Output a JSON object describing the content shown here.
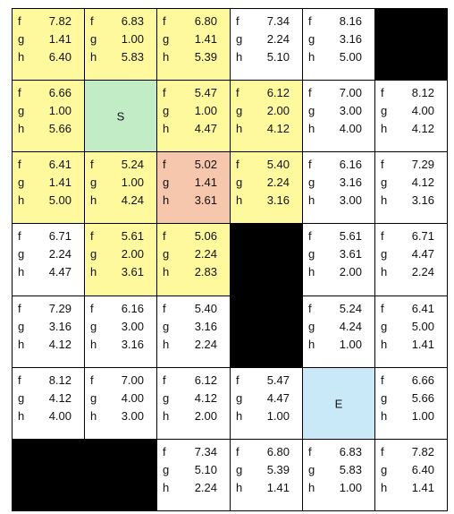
{
  "grid": {
    "rows": 7,
    "cols": 6,
    "colors": {
      "white": "#ffffff",
      "yellow": "#fff99e",
      "salmon": "#f6c6ad",
      "green": "#c2ecc6",
      "blue": "#c9e8f8",
      "wall": "#000000"
    },
    "cells": [
      [
        {
          "type": "value",
          "color": "yellow",
          "f": "7.82",
          "g": "1.41",
          "h": "6.40"
        },
        {
          "type": "value",
          "color": "yellow",
          "f": "6.83",
          "g": "1.00",
          "h": "5.83"
        },
        {
          "type": "value",
          "color": "yellow",
          "f": "6.80",
          "g": "1.41",
          "h": "5.39"
        },
        {
          "type": "value",
          "color": "white",
          "f": "7.34",
          "g": "2.24",
          "h": "5.10"
        },
        {
          "type": "value",
          "color": "white",
          "f": "8.16",
          "g": "3.16",
          "h": "5.00"
        },
        {
          "type": "wall"
        }
      ],
      [
        {
          "type": "value",
          "color": "yellow",
          "f": "6.66",
          "g": "1.00",
          "h": "5.66"
        },
        {
          "type": "start",
          "color": "green",
          "label": "S"
        },
        {
          "type": "value",
          "color": "yellow",
          "f": "5.47",
          "g": "1.00",
          "h": "4.47"
        },
        {
          "type": "value",
          "color": "yellow",
          "f": "6.12",
          "g": "2.00",
          "h": "4.12"
        },
        {
          "type": "value",
          "color": "white",
          "f": "7.00",
          "g": "3.00",
          "h": "4.00"
        },
        {
          "type": "value",
          "color": "white",
          "f": "8.12",
          "g": "4.00",
          "h": "4.12"
        }
      ],
      [
        {
          "type": "value",
          "color": "yellow",
          "f": "6.41",
          "g": "1.41",
          "h": "5.00"
        },
        {
          "type": "value",
          "color": "yellow",
          "f": "5.24",
          "g": "1.00",
          "h": "4.24"
        },
        {
          "type": "value",
          "color": "salmon",
          "f": "5.02",
          "g": "1.41",
          "h": "3.61"
        },
        {
          "type": "value",
          "color": "yellow",
          "f": "5.40",
          "g": "2.24",
          "h": "3.16"
        },
        {
          "type": "value",
          "color": "white",
          "f": "6.16",
          "g": "3.16",
          "h": "3.00"
        },
        {
          "type": "value",
          "color": "white",
          "f": "7.29",
          "g": "4.12",
          "h": "3.16"
        }
      ],
      [
        {
          "type": "value",
          "color": "white",
          "f": "6.71",
          "g": "2.24",
          "h": "4.47"
        },
        {
          "type": "value",
          "color": "yellow",
          "f": "5.61",
          "g": "2.00",
          "h": "3.61"
        },
        {
          "type": "value",
          "color": "yellow",
          "f": "5.06",
          "g": "2.24",
          "h": "2.83"
        },
        {
          "type": "wall"
        },
        {
          "type": "value",
          "color": "white",
          "f": "5.61",
          "g": "3.61",
          "h": "2.00"
        },
        {
          "type": "value",
          "color": "white",
          "f": "6.71",
          "g": "4.47",
          "h": "2.24"
        }
      ],
      [
        {
          "type": "value",
          "color": "white",
          "f": "7.29",
          "g": "3.16",
          "h": "4.12"
        },
        {
          "type": "value",
          "color": "white",
          "f": "6.16",
          "g": "3.00",
          "h": "3.16"
        },
        {
          "type": "value",
          "color": "white",
          "f": "5.40",
          "g": "3.16",
          "h": "2.24"
        },
        {
          "type": "wall"
        },
        {
          "type": "value",
          "color": "white",
          "f": "5.24",
          "g": "4.24",
          "h": "1.00"
        },
        {
          "type": "value",
          "color": "white",
          "f": "6.41",
          "g": "5.00",
          "h": "1.41"
        }
      ],
      [
        {
          "type": "value",
          "color": "white",
          "f": "8.12",
          "g": "4.12",
          "h": "4.00"
        },
        {
          "type": "value",
          "color": "white",
          "f": "7.00",
          "g": "4.00",
          "h": "3.00"
        },
        {
          "type": "value",
          "color": "white",
          "f": "6.12",
          "g": "4.12",
          "h": "2.00"
        },
        {
          "type": "value",
          "color": "white",
          "f": "5.47",
          "g": "4.47",
          "h": "1.00"
        },
        {
          "type": "end",
          "color": "blue",
          "label": "E"
        },
        {
          "type": "value",
          "color": "white",
          "f": "6.66",
          "g": "5.66",
          "h": "1.00"
        }
      ],
      [
        {
          "type": "wall"
        },
        {
          "type": "wall"
        },
        {
          "type": "value",
          "color": "white",
          "f": "7.34",
          "g": "5.10",
          "h": "2.24"
        },
        {
          "type": "value",
          "color": "white",
          "f": "6.80",
          "g": "5.39",
          "h": "1.41"
        },
        {
          "type": "value",
          "color": "white",
          "f": "6.83",
          "g": "5.83",
          "h": "1.00"
        },
        {
          "type": "value",
          "color": "white",
          "f": "7.82",
          "g": "6.40",
          "h": "1.41"
        }
      ]
    ]
  }
}
